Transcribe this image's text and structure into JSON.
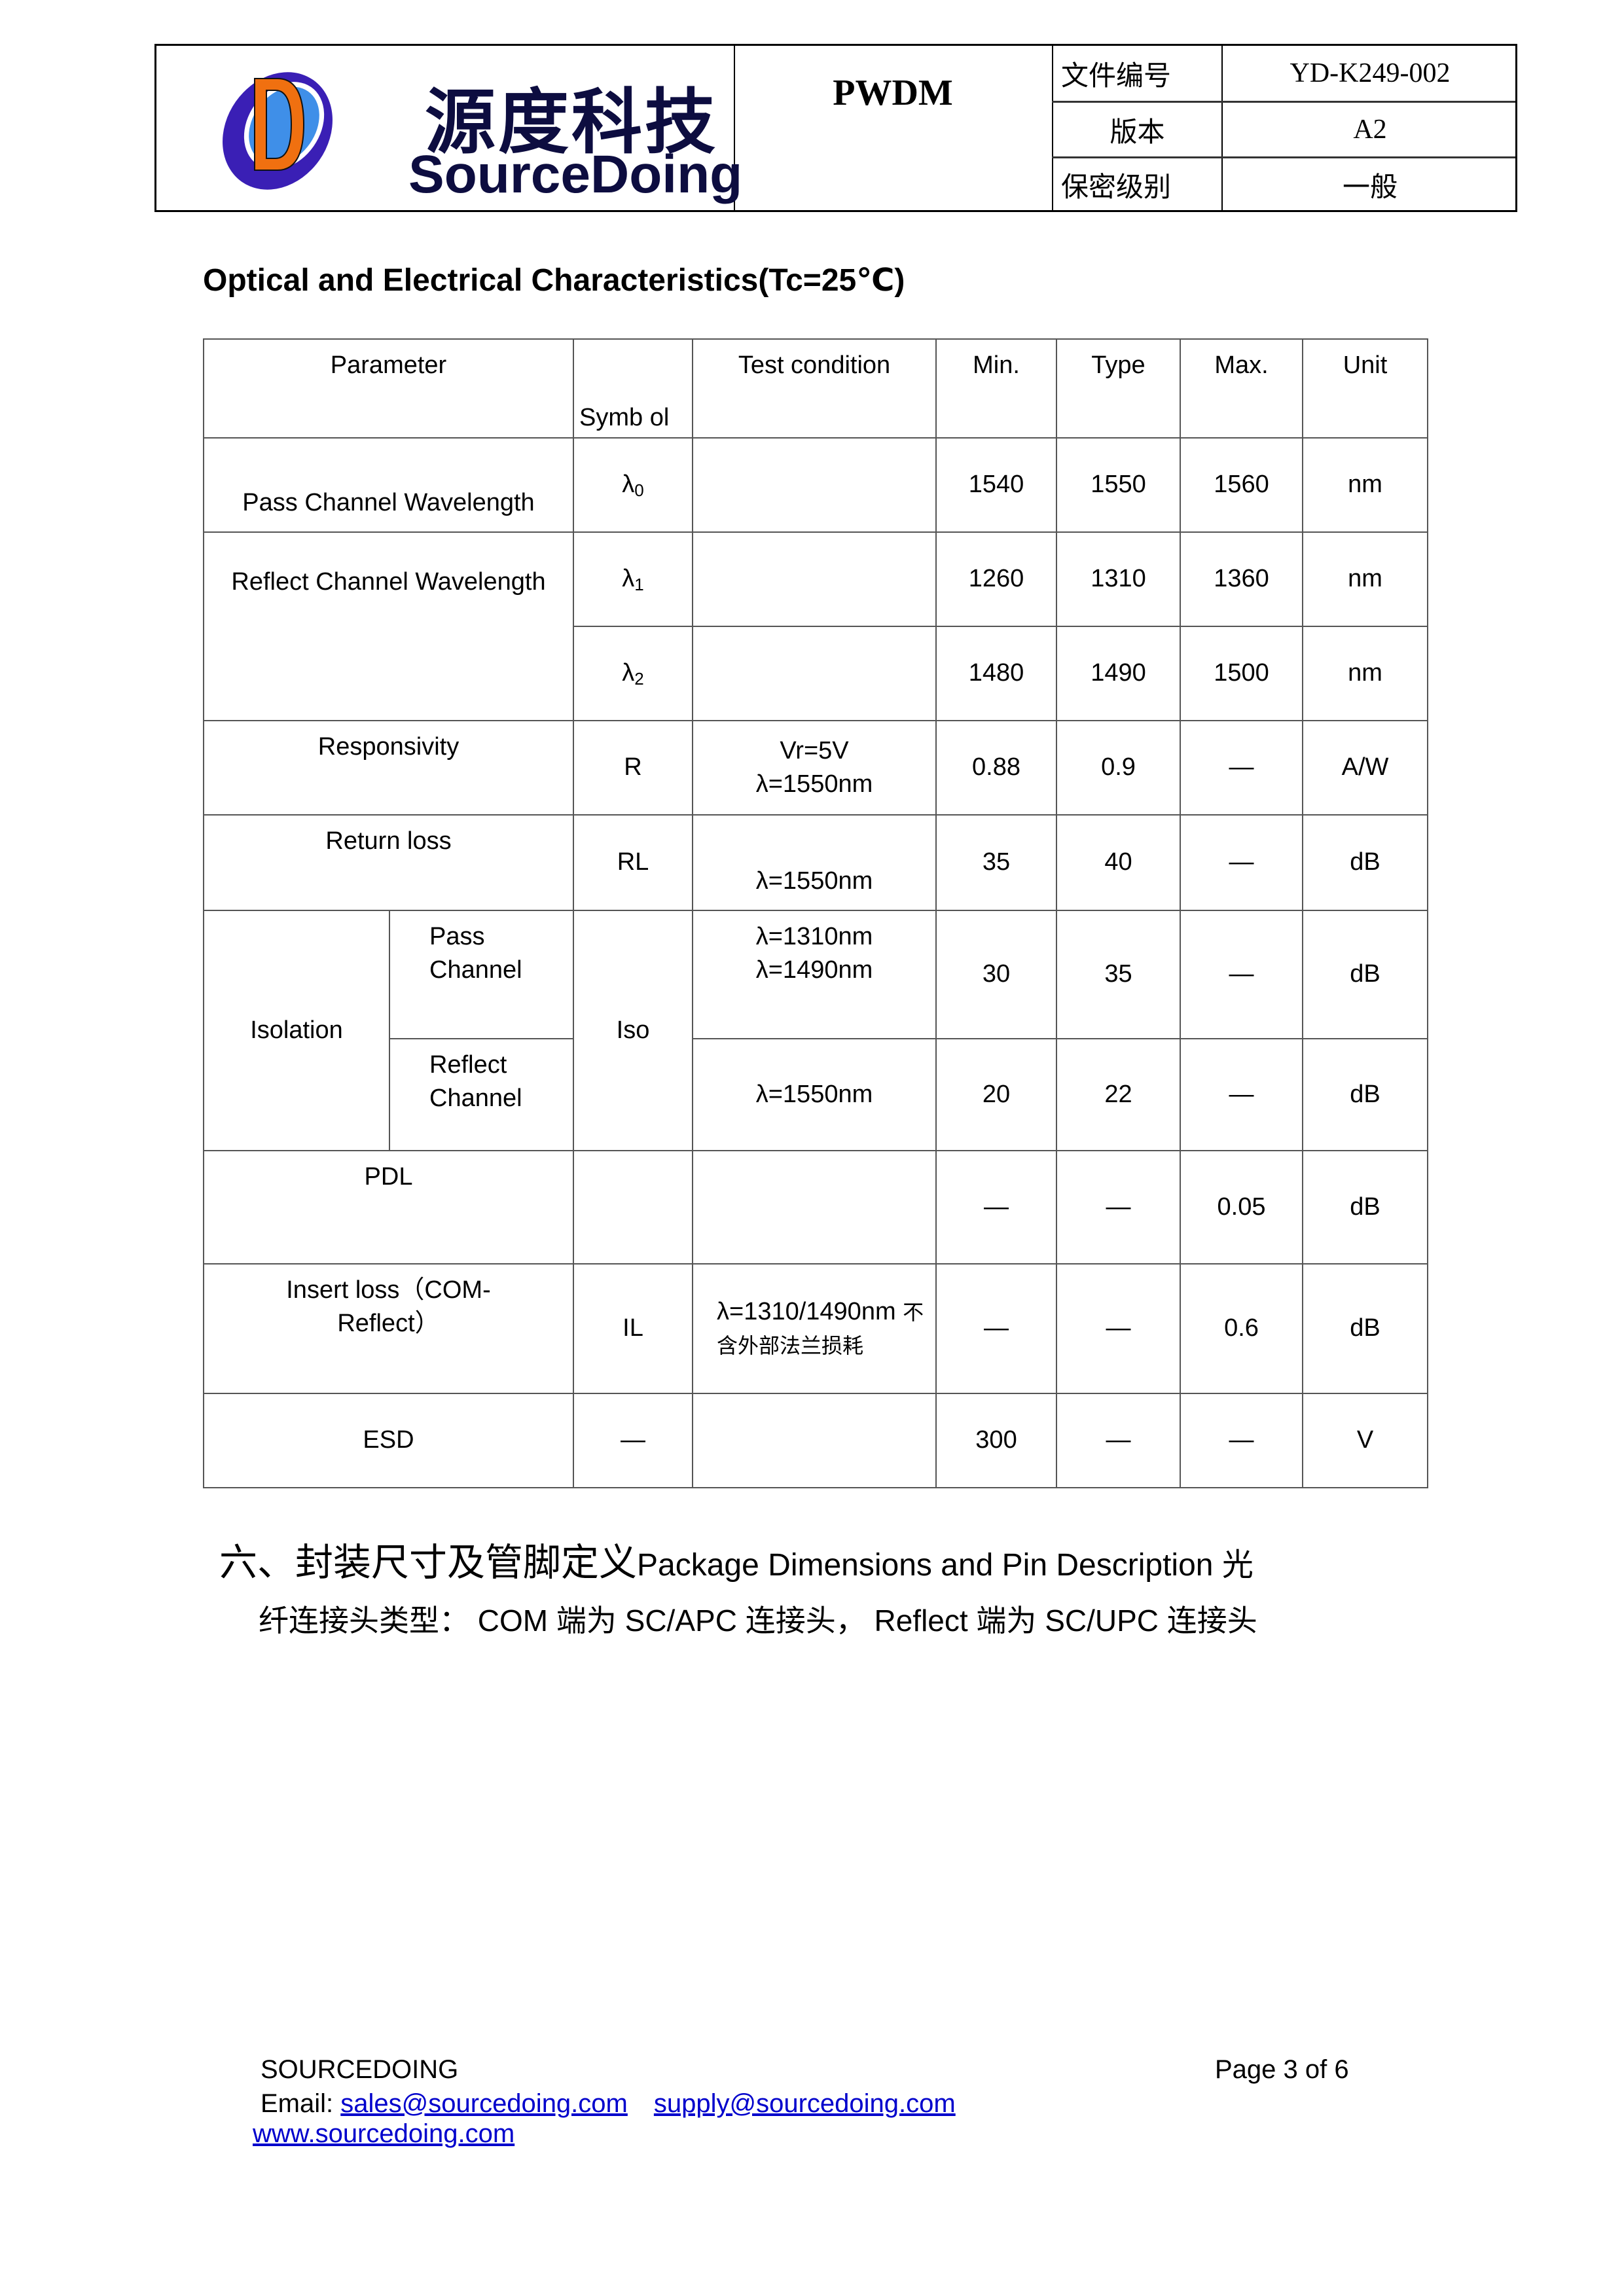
{
  "header": {
    "logo_cn": "源度科技",
    "logo_en": "SourceDoing",
    "product": "PWDM",
    "rows": [
      {
        "label": "文件编号",
        "value": "YD-K249-002"
      },
      {
        "label": "版本",
        "value": "A2"
      },
      {
        "label": "保密级别",
        "value": "一般"
      }
    ],
    "logo_colors": {
      "ring": "#3a1fb5",
      "inner": "#3f8fe8",
      "letter": "#f07010",
      "text": "#0d0d40"
    }
  },
  "title": "Optical and Electrical Characteristics(Tc=25℃)",
  "table": {
    "headers": {
      "parameter": "Parameter",
      "symbol": "Symb ol",
      "condition": "Test condition",
      "min": "Min.",
      "typ": "Type",
      "max": "Max.",
      "unit": "Unit"
    },
    "pass_wl": {
      "param": "Pass Channel Wavelength",
      "sym": "λ",
      "sub": "0",
      "min": "1540",
      "typ": "1550",
      "max": "1560",
      "unit": "nm"
    },
    "refl_wl": {
      "param": "Reflect Channel Wavelength",
      "r1": {
        "sym": "λ",
        "sub": "1",
        "min": "1260",
        "typ": "1310",
        "max": "1360",
        "unit": "nm"
      },
      "r2": {
        "sym": "λ",
        "sub": "2",
        "min": "1480",
        "typ": "1490",
        "max": "1500",
        "unit": "nm"
      }
    },
    "resp": {
      "param": "Responsivity",
      "sym": "R",
      "cond1": "Vr=5V",
      "cond2": "λ=1550nm",
      "min": "0.88",
      "typ": "0.9",
      "max": "—",
      "unit": "A/W"
    },
    "rl": {
      "param": "Return loss",
      "sym": "RL",
      "cond": "λ=1550nm",
      "min": "35",
      "typ": "40",
      "max": "—",
      "unit": "dB"
    },
    "iso": {
      "param": "Isolation",
      "sym": "Iso",
      "pass": {
        "label": "Pass Channel",
        "cond1": "λ=1310nm",
        "cond2": "λ=1490nm",
        "min": "30",
        "typ": "35",
        "max": "—",
        "unit": "dB"
      },
      "refl": {
        "label": "Reflect Channel",
        "cond": "λ=1550nm",
        "min": "20",
        "typ": "22",
        "max": "—",
        "unit": "dB"
      }
    },
    "pdl": {
      "param": "PDL",
      "min": "—",
      "typ": "—",
      "max": "0.05",
      "unit": "dB"
    },
    "il": {
      "param": "Insert loss（COM-Reflect）",
      "sym": "IL",
      "cond": "λ=1310/1490nm",
      "cond_cn": "不含外部法兰损耗",
      "min": "—",
      "typ": "—",
      "max": "0.6",
      "unit": "dB"
    },
    "esd": {
      "param": "ESD",
      "sym": "—",
      "min": "300",
      "typ": "—",
      "max": "—",
      "unit": "V"
    }
  },
  "section": {
    "heading_cn": "六、封装尺寸及管脚定义",
    "heading_en": "Package Dimensions and Pin Description",
    "line1_tail": "光",
    "line2": "纤连接头类型： COM 端为 SC/APC 连接头， Reflect 端为 SC/UPC 连接头"
  },
  "footer": {
    "company": "SOURCEDOING",
    "email_label": "Email:",
    "email1": "sales@sourcedoing.com",
    "email2": "supply@sourcedoing.com",
    "website": "www.sourcedoing.com",
    "page": "Page 3 of 6"
  }
}
